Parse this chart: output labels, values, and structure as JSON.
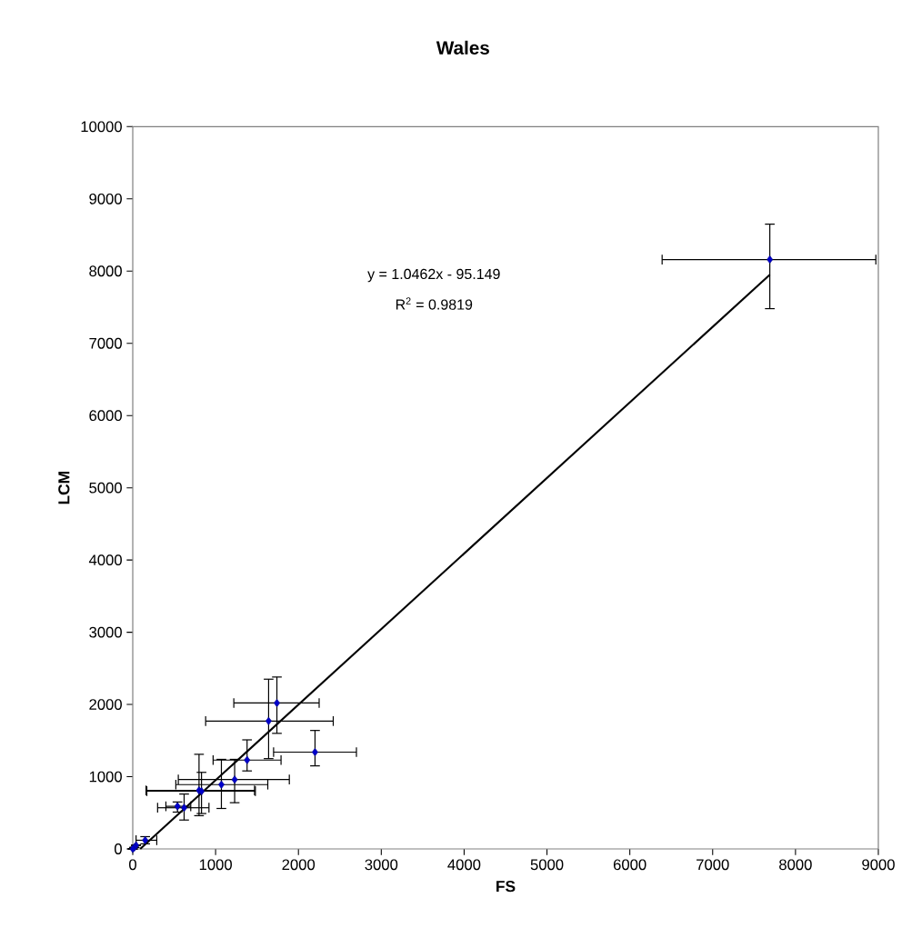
{
  "chart_data": {
    "type": "scatter",
    "title": "Wales",
    "xlabel": "FS",
    "ylabel": "LCM",
    "annotations": [
      "y = 1.0462x - 95.149",
      "R$^{2}$ = 0.9819"
    ],
    "xlim": [
      0,
      9000
    ],
    "ylim": [
      0,
      10000
    ],
    "xticks": [
      0,
      1000,
      2000,
      3000,
      4000,
      5000,
      6000,
      7000,
      8000,
      9000
    ],
    "yticks": [
      0,
      1000,
      2000,
      3000,
      4000,
      5000,
      6000,
      7000,
      8000,
      9000,
      10000
    ],
    "series": [
      {
        "color": "#000080",
        "marker": "diamond",
        "x": [
          7690,
          1740,
          1640,
          2200,
          1380,
          1230,
          1070,
          800,
          830,
          540,
          620,
          150,
          40,
          20,
          0
        ],
        "values": [
          8160,
          2020,
          1770,
          1340,
          1230,
          960,
          890,
          810,
          800,
          590,
          570,
          120,
          50,
          20,
          0
        ],
        "xerrors": [
          [
            6390,
            8970
          ],
          [
            1220,
            2250
          ],
          [
            880,
            2420
          ],
          [
            1700,
            2700
          ],
          [
            970,
            1790
          ],
          [
            550,
            1890
          ],
          [
            520,
            1630
          ],
          [
            160,
            1470
          ],
          [
            170,
            1480
          ],
          [
            400,
            700
          ],
          [
            300,
            920
          ],
          [
            40,
            290
          ],
          null,
          null,
          null
        ],
        "errors": [
          [
            7480,
            8650
          ],
          [
            1600,
            2380
          ],
          [
            1250,
            2350
          ],
          [
            1150,
            1640
          ],
          [
            1080,
            1510
          ],
          [
            640,
            1240
          ],
          [
            560,
            1240
          ],
          [
            460,
            1310
          ],
          [
            490,
            1060
          ],
          [
            510,
            650
          ],
          [
            400,
            760
          ],
          [
            70,
            170
          ],
          null,
          null,
          null
        ]
      },
      {
        "type": "line",
        "color": "#000000",
        "marker": "none",
        "x": [
          90,
          7690
        ],
        "values": [
          0,
          7950
        ]
      }
    ]
  }
}
